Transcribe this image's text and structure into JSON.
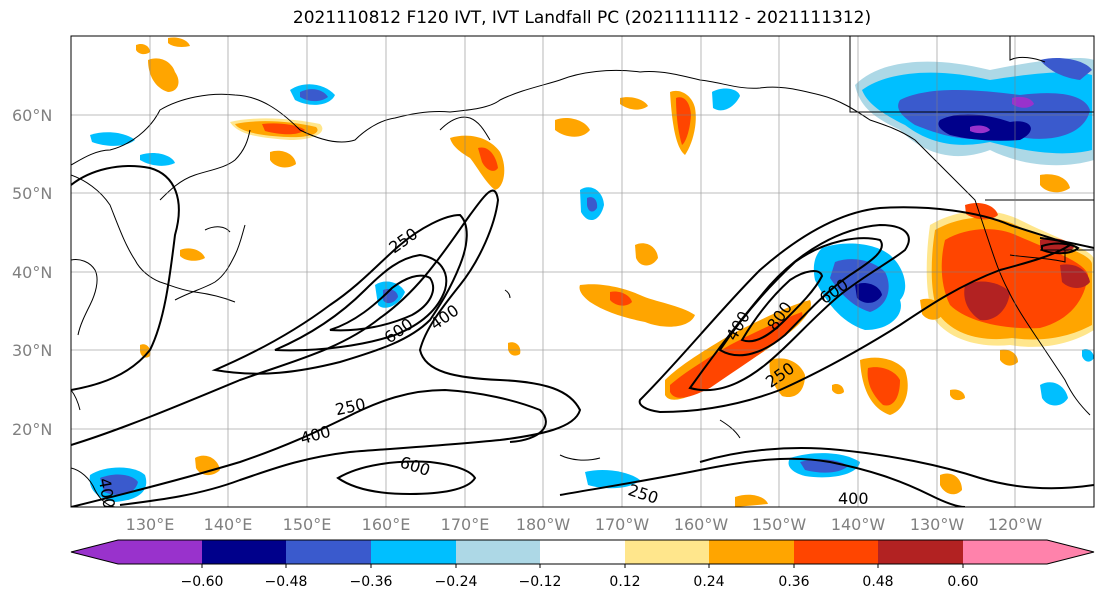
{
  "title": "2021110812 F120 IVT, IVT Landfall PC (2021111112 - 2021111312)",
  "lat_labels": [
    "60°N",
    "50°N",
    "40°N",
    "30°N",
    "20°N"
  ],
  "lon_labels": [
    "130°E",
    "140°E",
    "150°E",
    "160°E",
    "170°E",
    "180°W",
    "170°W",
    "160°W",
    "150°W",
    "140°W",
    "130°W",
    "120°W"
  ],
  "contour_labels": [
    "250",
    "400",
    "600",
    "400",
    "800",
    "600",
    "250",
    "250",
    "400",
    "600",
    "250",
    "400",
    "400"
  ],
  "colorbar": {
    "colors": [
      "#9932CC",
      "#00008B",
      "#3A5ACD",
      "#00BFFF",
      "#ADD8E6",
      "#FFFFFF",
      "#FFE68C",
      "#FFA500",
      "#FF4500",
      "#B22222",
      "#FF82AB"
    ],
    "tick_labels": [
      "−0.60",
      "−0.48",
      "−0.36",
      "−0.24",
      "−0.12",
      "0.12",
      "0.24",
      "0.36",
      "0.48",
      "0.60"
    ]
  }
}
